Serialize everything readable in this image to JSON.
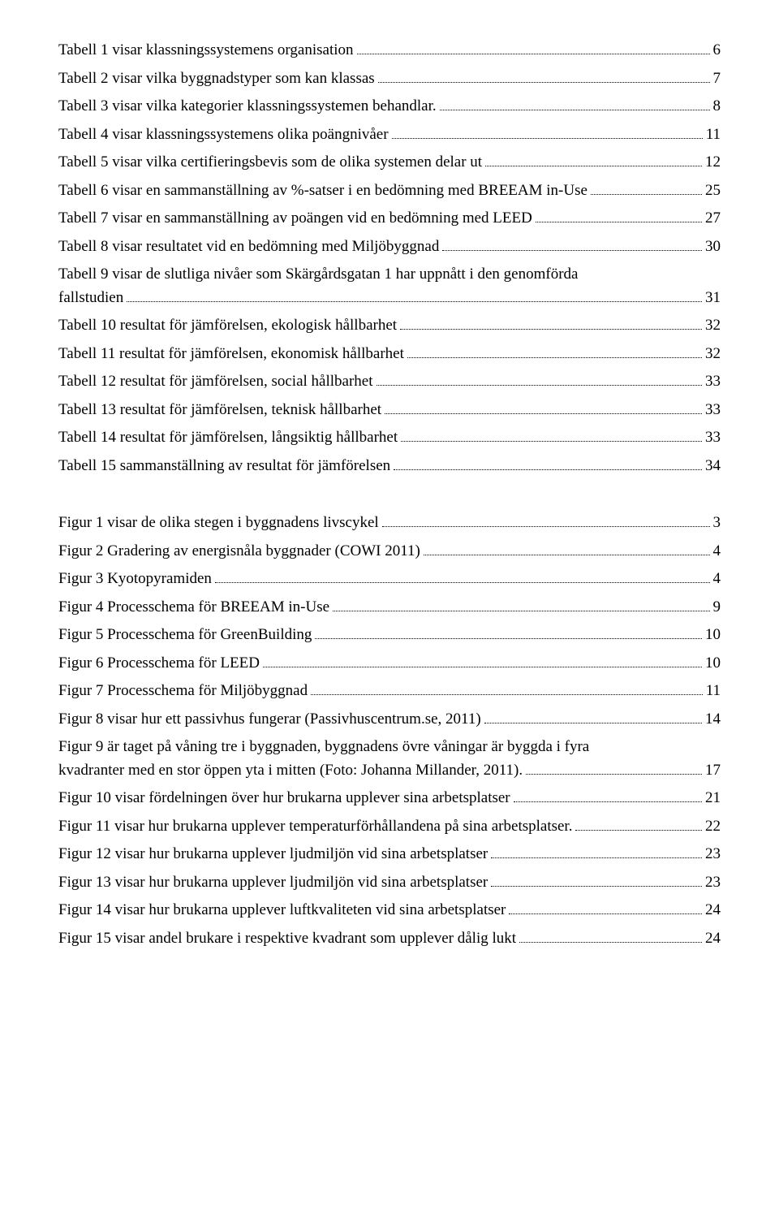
{
  "tables": [
    {
      "text": "Tabell 1 visar klassningssystemens organisation",
      "page": "6"
    },
    {
      "text": "Tabell 2 visar vilka byggnadstyper som kan klassas",
      "page": "7"
    },
    {
      "text": "Tabell 3 visar vilka kategorier klassningssystemen behandlar.",
      "page": "8"
    },
    {
      "text": "Tabell 4 visar klassningssystemens olika poängnivåer",
      "page": "11"
    },
    {
      "text": "Tabell 5 visar vilka certifieringsbevis som de olika systemen delar ut",
      "page": "12"
    },
    {
      "text": "Tabell 6 visar en sammanställning av %-satser i en bedömning med BREEAM in-Use",
      "page": "25"
    },
    {
      "text": "Tabell 7 visar en sammanställning av poängen vid en bedömning med LEED",
      "page": "27"
    },
    {
      "text": "Tabell 8 visar resultatet vid en bedömning med Miljöbyggnad",
      "page": "30"
    },
    {
      "text_lines": [
        "Tabell 9 visar de slutliga nivåer som Skärgårdsgatan 1 har uppnått i den genomförda",
        "fallstudien"
      ],
      "page": "31"
    },
    {
      "text": "Tabell 10 resultat för jämförelsen, ekologisk hållbarhet",
      "page": "32"
    },
    {
      "text": "Tabell 11 resultat för jämförelsen, ekonomisk hållbarhet",
      "page": "32"
    },
    {
      "text": "Tabell 12 resultat för jämförelsen, social hållbarhet",
      "page": "33"
    },
    {
      "text": "Tabell 13 resultat för jämförelsen, teknisk hållbarhet",
      "page": "33"
    },
    {
      "text": "Tabell 14 resultat för jämförelsen, långsiktig hållbarhet",
      "page": "33"
    },
    {
      "text": "Tabell 15 sammanställning av resultat för jämförelsen",
      "page": "34"
    }
  ],
  "figures": [
    {
      "text": "Figur 1 visar de olika stegen i byggnadens livscykel",
      "page": "3"
    },
    {
      "text": "Figur 2 Gradering av energisnåla byggnader (COWI 2011)",
      "page": "4"
    },
    {
      "text": "Figur 3 Kyotopyramiden",
      "page": "4"
    },
    {
      "text": "Figur 4 Processchema för BREEAM in-Use",
      "page": "9"
    },
    {
      "text": "Figur 5 Processchema för GreenBuilding",
      "page": "10"
    },
    {
      "text": "Figur 6 Processchema för LEED",
      "page": "10"
    },
    {
      "text": "Figur 7 Processchema för Miljöbyggnad",
      "page": "11"
    },
    {
      "text": "Figur 8 visar hur ett passivhus fungerar (Passivhuscentrum.se, 2011)",
      "page": "14"
    },
    {
      "text_lines": [
        "Figur 9 är taget på våning tre i byggnaden, byggnadens övre våningar är byggda i fyra",
        "kvadranter med en stor öppen yta i mitten (Foto: Johanna Millander, 2011)."
      ],
      "page": "17"
    },
    {
      "text": "Figur 10 visar fördelningen över hur brukarna upplever sina arbetsplatser",
      "page": "21"
    },
    {
      "text": "Figur 11 visar hur brukarna upplever temperaturförhållandena på sina arbetsplatser.",
      "page": "22"
    },
    {
      "text": "Figur 12 visar hur brukarna upplever ljudmiljön vid sina arbetsplatser",
      "page": "23"
    },
    {
      "text": "Figur 13 visar hur brukarna upplever ljudmiljön vid sina arbetsplatser",
      "page": "23"
    },
    {
      "text": "Figur 14 visar hur brukarna upplever luftkvaliteten vid sina arbetsplatser",
      "page": "24"
    },
    {
      "text": "Figur 15 visar andel brukare i respektive kvadrant som upplever dålig lukt",
      "page": "24"
    }
  ]
}
